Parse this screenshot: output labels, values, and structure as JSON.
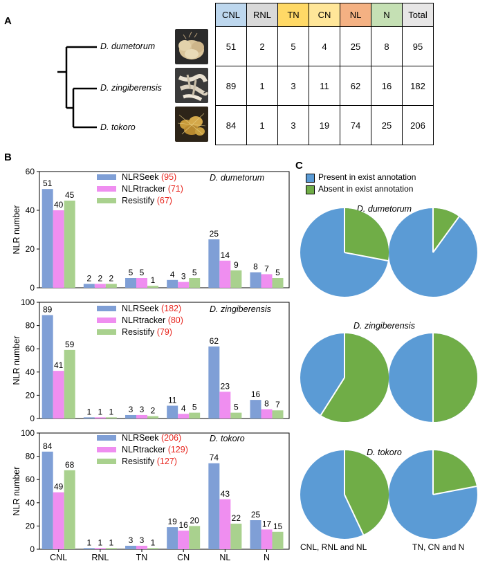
{
  "panels": {
    "a": "A",
    "b": "B",
    "c": "C"
  },
  "table": {
    "headers": [
      "CNL",
      "RNL",
      "TN",
      "CN",
      "NL",
      "N",
      "Total"
    ],
    "header_colors": [
      "#bdd7ee",
      "#d9d9d9",
      "#ffd966",
      "#ffe699",
      "#f4b183",
      "#c5e0b4",
      "#e7e6e6"
    ],
    "rows": [
      {
        "species": "D. dumetorum",
        "values": [
          "51",
          "2",
          "5",
          "4",
          "25",
          "8",
          "95"
        ]
      },
      {
        "species": "D. zingiberensis",
        "values": [
          "89",
          "1",
          "3",
          "11",
          "62",
          "16",
          "182"
        ]
      },
      {
        "species": "D. tokoro",
        "values": [
          "84",
          "1",
          "3",
          "19",
          "74",
          "25",
          "206"
        ]
      }
    ]
  },
  "colors": {
    "nlrseek": "#7f9fd6",
    "nlrtracker": "#ef8ef0",
    "resistify": "#a9d18e",
    "red": "#e8251e",
    "pie_present": "#5b9bd5",
    "pie_absent": "#70ad47"
  },
  "chart_data": [
    {
      "type": "bar",
      "title": "D. dumetorum",
      "ylabel": "NLR number",
      "ylim": [
        0,
        60
      ],
      "yticks": [
        0,
        20,
        40,
        60
      ],
      "categories": [
        "CNL",
        "RNL",
        "TN",
        "CN",
        "NL",
        "N"
      ],
      "series": [
        {
          "name": "NLRSeek",
          "count": "(95)",
          "values": [
            51,
            2,
            5,
            4,
            25,
            8
          ]
        },
        {
          "name": "NLRtracker",
          "count": "(71)",
          "values": [
            40,
            2,
            5,
            3,
            14,
            7
          ]
        },
        {
          "name": "Resistify",
          "count": "(67)",
          "values": [
            45,
            2,
            1,
            5,
            9,
            5
          ]
        }
      ]
    },
    {
      "type": "bar",
      "title": "D. zingiberensis",
      "ylabel": "NLR number",
      "ylim": [
        0,
        100
      ],
      "yticks": [
        0,
        20,
        40,
        60,
        80,
        100
      ],
      "categories": [
        "CNL",
        "RNL",
        "TN",
        "CN",
        "NL",
        "N"
      ],
      "series": [
        {
          "name": "NLRSeek",
          "count": "(182)",
          "values": [
            89,
            1,
            3,
            11,
            62,
            16
          ]
        },
        {
          "name": "NLRtracker",
          "count": "(80)",
          "values": [
            41,
            1,
            3,
            4,
            23,
            8
          ]
        },
        {
          "name": "Resistify",
          "count": "(79)",
          "values": [
            59,
            1,
            2,
            5,
            5,
            7
          ]
        }
      ]
    },
    {
      "type": "bar",
      "title": "D. tokoro",
      "ylabel": "NLR number",
      "ylim": [
        0,
        100
      ],
      "yticks": [
        0,
        20,
        40,
        60,
        80,
        100
      ],
      "categories": [
        "CNL",
        "RNL",
        "TN",
        "CN",
        "NL",
        "N"
      ],
      "series": [
        {
          "name": "NLRSeek",
          "count": "(206)",
          "values": [
            84,
            1,
            3,
            19,
            74,
            25
          ]
        },
        {
          "name": "NLRtracker",
          "count": "(129)",
          "values": [
            49,
            1,
            3,
            16,
            43,
            17
          ]
        },
        {
          "name": "Resistify",
          "count": "(127)",
          "values": [
            68,
            1,
            1,
            20,
            22,
            15
          ]
        }
      ]
    },
    {
      "type": "pie",
      "legend": [
        "Present in exist annotation",
        "Absent in exist annotation"
      ],
      "columns": [
        "CNL, RNL and NL",
        "TN, CN and N"
      ],
      "rows": [
        {
          "title": "D. dumetorum",
          "present_fraction": [
            0.72,
            0.9
          ]
        },
        {
          "title": "D. zingiberensis",
          "present_fraction": [
            0.41,
            0.5
          ]
        },
        {
          "title": "D. tokoro",
          "present_fraction": [
            0.57,
            0.78
          ]
        }
      ]
    }
  ]
}
